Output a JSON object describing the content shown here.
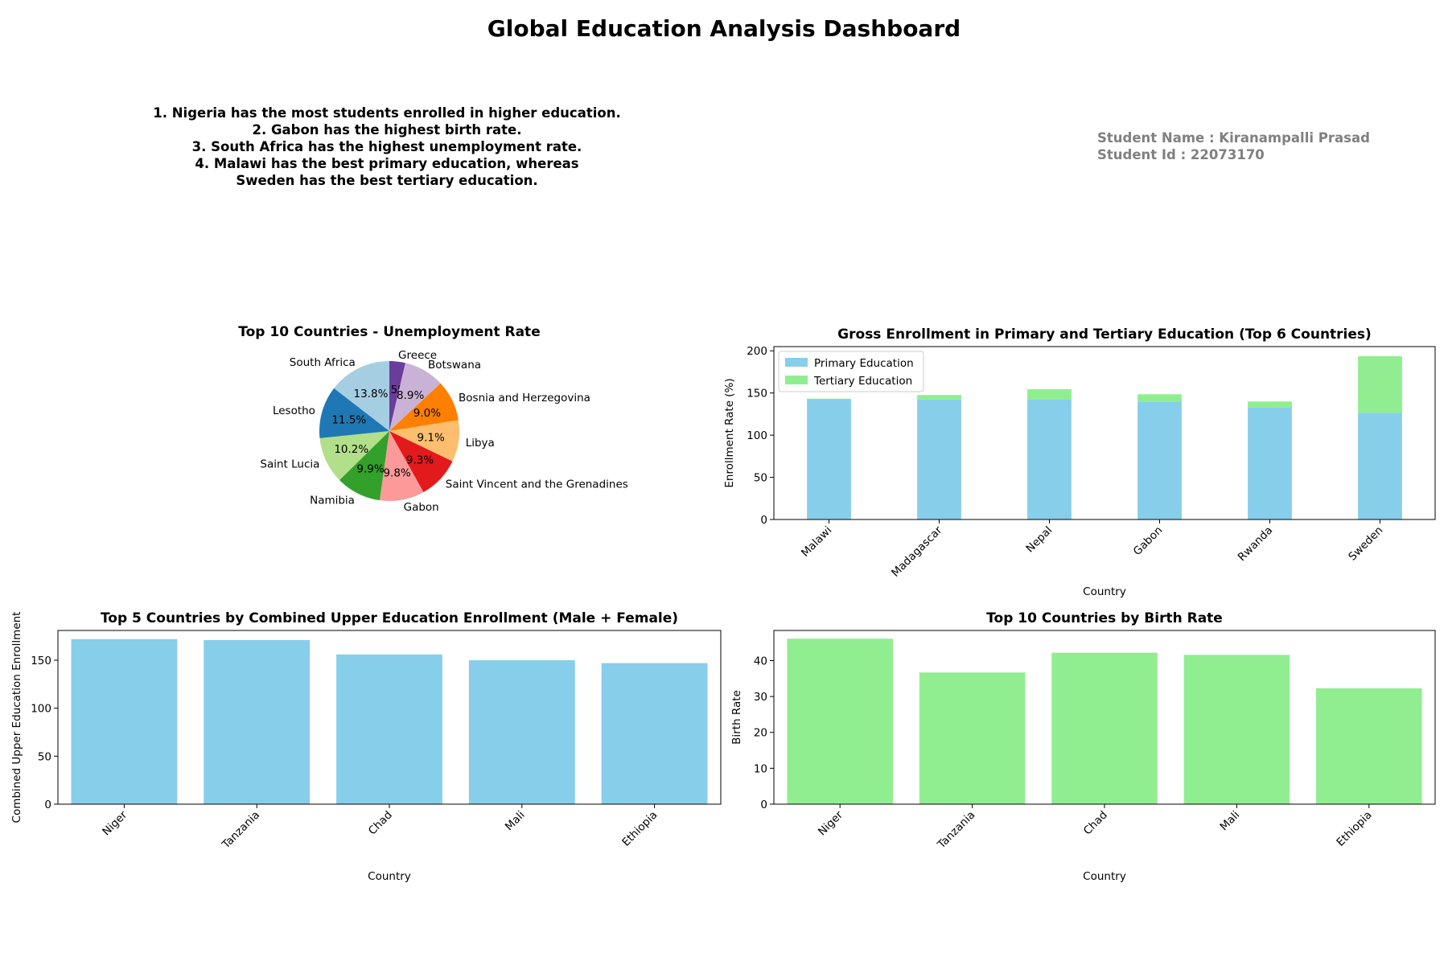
{
  "dashboard": {
    "title": "Global Education Analysis Dashboard",
    "insights": [
      "1. Nigeria has the most students enrolled in higher education.",
      "2. Gabon has the highest birth rate.",
      "3. South Africa has the highest unemployment rate.",
      "4. Malawi has the best primary education, whereas",
      "Sweden has the best tertiary education."
    ],
    "student": {
      "name_line": "Student Name : Kiranampalli Prasad",
      "id_line": "Student Id : 22073170"
    }
  },
  "chart_data": [
    {
      "type": "pie",
      "title": "Top 10 Countries - Unemployment Rate",
      "categories": [
        "Greece",
        "Botswana",
        "Bosnia and Herzegovina",
        "Libya",
        "Saint Vincent and the Grenadines",
        "Gabon",
        "Namibia",
        "Saint Lucia",
        "Lesotho",
        "South Africa"
      ],
      "values": [
        3.5,
        8.9,
        9.0,
        9.1,
        9.3,
        9.8,
        9.9,
        10.2,
        11.5,
        13.8
      ],
      "value_labels": [
        "3.5%",
        "8.9%",
        "9.0%",
        "9.1%",
        "9.3%",
        "9.8%",
        "9.9%",
        "10.2%",
        "11.5%",
        "13.8%"
      ],
      "colors": [
        "#6a3d9a",
        "#cab2d6",
        "#ff7f00",
        "#fdbf6f",
        "#e31a1c",
        "#fb9a99",
        "#33a02c",
        "#b2df8a",
        "#1f78b4",
        "#a6cee3"
      ]
    },
    {
      "type": "bar",
      "stacked": true,
      "title": "Gross Enrollment in Primary and Tertiary Education (Top 6 Countries)",
      "xlabel": "Country",
      "ylabel": "Enrollment Rate (%)",
      "categories": [
        "Malawi",
        "Madagascar",
        "Nepal",
        "Gabon",
        "Rwanda",
        "Sweden"
      ],
      "series": [
        {
          "name": "Primary Education",
          "color": "#87ceeb",
          "values": [
            142.5,
            142.3,
            142.1,
            139.9,
            133.2,
            126.6
          ]
        },
        {
          "name": "Tertiary Education",
          "color": "#90ee90",
          "values": [
            0.8,
            5.3,
            12.4,
            8.6,
            6.7,
            67.0
          ]
        }
      ],
      "ylim": [
        0,
        205
      ],
      "yticks": [
        0,
        50,
        100,
        150,
        200
      ],
      "legend": "top-left"
    },
    {
      "type": "bar",
      "title": "Top 5 Countries by Combined Upper Education Enrollment (Male + Female)",
      "xlabel": "Country",
      "ylabel": "Combined Upper Education Enrollment",
      "categories": [
        "Niger",
        "Tanzania",
        "Chad",
        "Mali",
        "Ethiopia"
      ],
      "values": [
        172,
        171,
        156,
        150,
        147
      ],
      "color": "#87ceeb",
      "ylim": [
        0,
        181
      ],
      "yticks": [
        0,
        50,
        100,
        150
      ]
    },
    {
      "type": "bar",
      "title": "Top 10 Countries by Birth Rate",
      "xlabel": "Country",
      "ylabel": "Birth Rate",
      "categories": [
        "Niger",
        "Tanzania",
        "Chad",
        "Mali",
        "Ethiopia"
      ],
      "values": [
        46.1,
        36.7,
        42.2,
        41.6,
        32.3
      ],
      "color": "#90ee90",
      "ylim": [
        0,
        48.4
      ],
      "yticks": [
        0,
        10,
        20,
        30,
        40
      ]
    }
  ]
}
